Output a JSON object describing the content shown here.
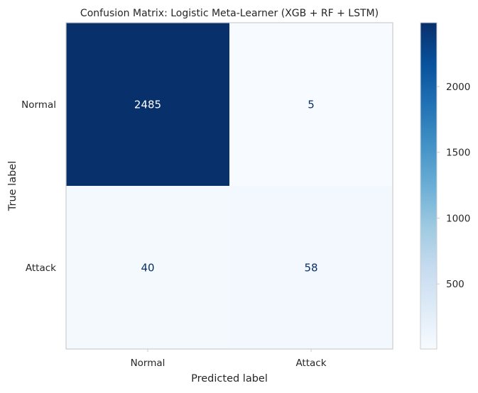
{
  "chart_data": {
    "type": "heatmap",
    "title": "Confusion Matrix: Logistic Meta-Learner (XGB + RF + LSTM)",
    "xlabel": "Predicted label",
    "ylabel": "True label",
    "x_categories": [
      "Normal",
      "Attack"
    ],
    "y_categories": [
      "Normal",
      "Attack"
    ],
    "values": [
      [
        2485,
        5
      ],
      [
        40,
        58
      ]
    ],
    "colormap": "Blues",
    "color_range": [
      5,
      2485
    ],
    "colorbar_ticks": [
      500,
      1000,
      1500,
      2000
    ],
    "grid": false
  }
}
